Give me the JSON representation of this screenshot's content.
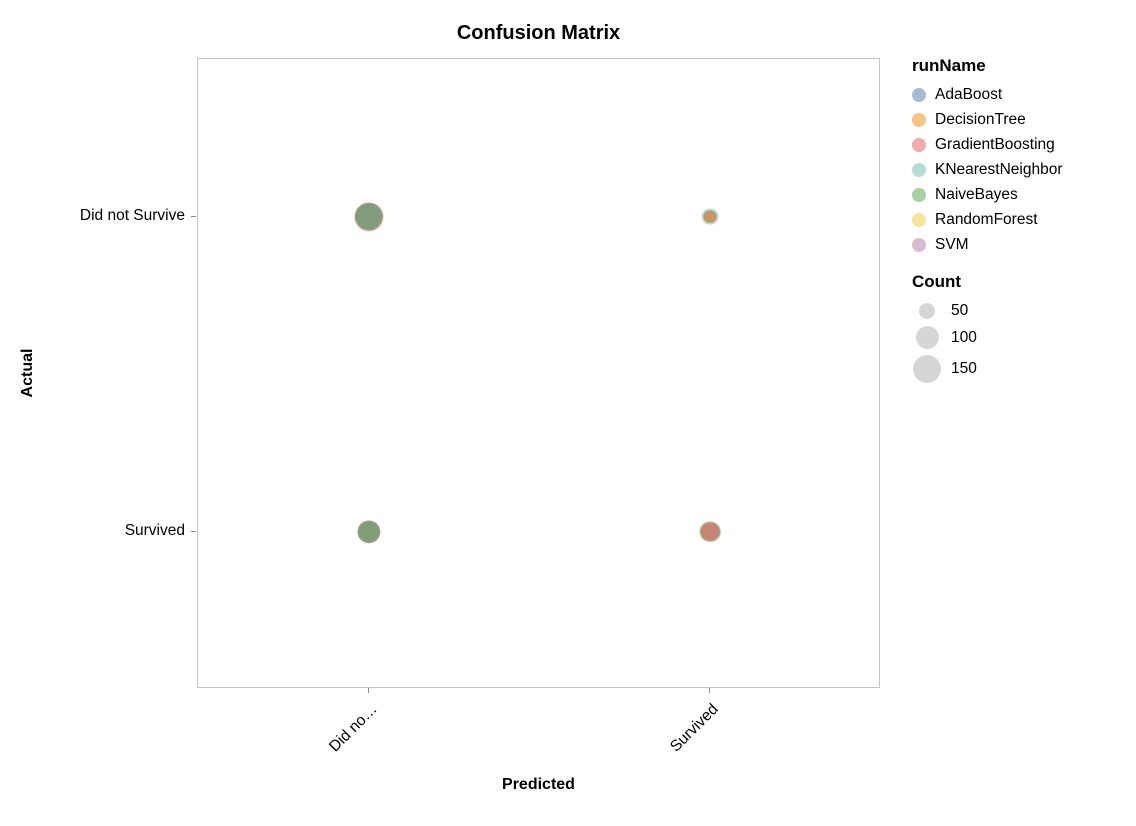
{
  "chart_data": {
    "type": "scatter",
    "title": "Confusion Matrix",
    "xlabel": "Predicted",
    "ylabel": "Actual",
    "x_categories": [
      "Did not Survive",
      "Survived"
    ],
    "x_tick_labels": [
      "Did no…",
      "Survived"
    ],
    "y_categories": [
      "Did not Survive",
      "Survived"
    ],
    "cells": [
      {
        "predicted": "Did not Survive",
        "actual": "Did not Survive"
      },
      {
        "predicted": "Survived",
        "actual": "Did not Survive"
      },
      {
        "predicted": "Did not Survive",
        "actual": "Survived"
      },
      {
        "predicted": "Survived",
        "actual": "Survived"
      }
    ],
    "series": [
      {
        "name": "AdaBoost",
        "color": "#4c78a8",
        "values": [
          148,
          31,
          93,
          74
        ]
      },
      {
        "name": "DecisionTree",
        "color": "#f58518",
        "values": [
          160,
          19,
          99,
          68
        ]
      },
      {
        "name": "GradientBoosting",
        "color": "#e45756",
        "values": [
          152,
          27,
          101,
          66
        ]
      },
      {
        "name": "KNearestNeighbor",
        "color": "#72b7b2",
        "values": [
          142,
          37,
          96,
          71
        ]
      },
      {
        "name": "NaiveBayes",
        "color": "#54a24b",
        "values": [
          125,
          54,
          78,
          89
        ]
      },
      {
        "name": "RandomForest",
        "color": "#eeca3b",
        "values": [
          158,
          21,
          97,
          70
        ]
      },
      {
        "name": "SVM",
        "color": "#b279a2",
        "values": [
          155,
          24,
          104,
          63
        ]
      }
    ],
    "legend": {
      "run_title": "runName",
      "count_title": "Count",
      "count_values": [
        50,
        100,
        150
      ]
    }
  }
}
